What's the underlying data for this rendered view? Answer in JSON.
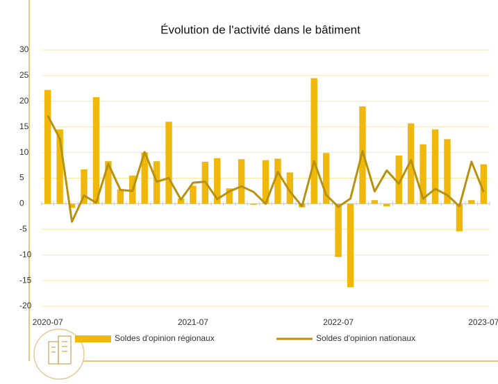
{
  "chart_data": {
    "type": "bar",
    "title": "Évolution de l'activité dans le bâtiment",
    "categories": [
      "2020-07",
      null,
      null,
      null,
      null,
      null,
      null,
      null,
      null,
      null,
      null,
      null,
      "2021-07",
      null,
      null,
      null,
      null,
      null,
      null,
      null,
      null,
      null,
      null,
      null,
      "2022-07",
      null,
      null,
      null,
      null,
      null,
      null,
      null,
      null,
      null,
      null,
      null,
      "2023-07"
    ],
    "series": [
      {
        "name": "Soldes d'opinion régionaux",
        "type": "bar",
        "color": "#f0b70c",
        "values": [
          22.2,
          14.5,
          -0.8,
          6.7,
          20.8,
          8.3,
          2.8,
          5.5,
          10,
          8.3,
          16,
          1,
          3.5,
          8.2,
          8.9,
          3,
          8.7,
          -0.2,
          8.5,
          8.8,
          6.1,
          -0.7,
          24.5,
          9.9,
          -10.4,
          -16.3,
          19,
          0.7,
          -0.5,
          9.4,
          15.7,
          11.6,
          14.5,
          12.6,
          -5.4,
          0.7,
          7.7
        ]
      },
      {
        "name": "Soldes d'opinion nationaux",
        "type": "line",
        "color": "#b8920e",
        "values": [
          17.2,
          12.7,
          -3.5,
          1.6,
          0.2,
          7.8,
          2.7,
          2.5,
          10.1,
          4.3,
          5,
          0.8,
          4.1,
          4.3,
          0.9,
          2.4,
          3.4,
          2.3,
          0,
          6.2,
          2.4,
          -0.5,
          8.3,
          1.7,
          -0.6,
          1,
          10.3,
          2.4,
          6.5,
          3.9,
          8.5,
          1,
          2.9,
          1.7,
          -0.5,
          8.2,
          2.3
        ]
      }
    ],
    "ylim": [
      -20,
      30
    ],
    "yticks": [
      -20,
      -15,
      -10,
      -5,
      0,
      5,
      10,
      15,
      20,
      25,
      30
    ],
    "grid": true
  }
}
